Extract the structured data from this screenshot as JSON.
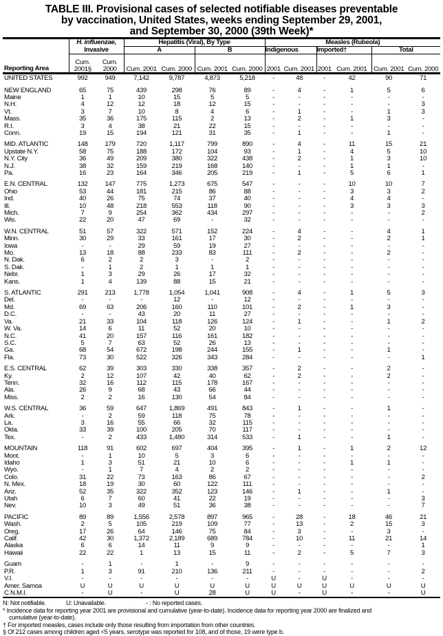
{
  "title": [
    "TABLE III. Provisional cases of selected notifiable diseases preventable",
    "by vaccination, United States, weeks ending September 29, 2001,",
    "and September 30, 2000 (39th Week)*"
  ],
  "header": {
    "reporting_area": "Reporting Area",
    "hib": "H. influenzae,",
    "hib2": "Invasive",
    "hepatitis": "Hepatitis (Viral), By Type",
    "hepA": "A",
    "hepB": "B",
    "measles": "Measles (Rubeola)",
    "indigenous": "Indigenous",
    "imported": "Imported†",
    "total": "Total",
    "cols": [
      "Cum. 2001§",
      "Cum. 2000",
      "Cum. 2001",
      "Cum. 2000",
      "Cum. 2001",
      "Cum. 2000",
      "2001",
      "Cum. 2001",
      "2001",
      "Cum. 2001",
      "Cum. 2001",
      "Cum. 2000"
    ]
  },
  "rows": [
    [
      "UNITED STATES",
      "992",
      "949",
      "7,142",
      "9,787",
      "4,873",
      "5,218",
      "-",
      "48",
      "-",
      "42",
      "90",
      "71"
    ],
    [
      "NEW ENGLAND",
      "65",
      "75",
      "439",
      "298",
      "76",
      "89",
      "-",
      "4",
      "-",
      "1",
      "5",
      "6"
    ],
    [
      "Maine",
      "1",
      "1",
      "10",
      "15",
      "5",
      "5",
      "-",
      "-",
      "-",
      "-",
      "-",
      "-"
    ],
    [
      "N.H.",
      "4",
      "12",
      "12",
      "18",
      "12",
      "15",
      "-",
      "-",
      "-",
      "-",
      "-",
      "3"
    ],
    [
      "Vt.",
      "3",
      "7",
      "10",
      "8",
      "4",
      "6",
      "-",
      "1",
      "-",
      "-",
      "1",
      "3"
    ],
    [
      "Mass.",
      "35",
      "36",
      "175",
      "115",
      "2",
      "13",
      "-",
      "2",
      "-",
      "1",
      "3",
      "-"
    ],
    [
      "R.I.",
      "3",
      "4",
      "38",
      "21",
      "22",
      "15",
      "-",
      "-",
      "-",
      "-",
      "-",
      "-"
    ],
    [
      "Conn.",
      "19",
      "15",
      "194",
      "121",
      "31",
      "35",
      "-",
      "1",
      "-",
      "-",
      "1",
      "-"
    ],
    [
      "MID. ATLANTIC",
      "148",
      "179",
      "720",
      "1,117",
      "799",
      "890",
      "-",
      "4",
      "-",
      "11",
      "15",
      "21"
    ],
    [
      "Upstate N.Y.",
      "58",
      "75",
      "188",
      "172",
      "104",
      "93",
      "-",
      "1",
      "-",
      "4",
      "5",
      "10"
    ],
    [
      "N.Y. City",
      "36",
      "49",
      "209",
      "380",
      "322",
      "438",
      "-",
      "2",
      "-",
      "1",
      "3",
      "10"
    ],
    [
      "N.J.",
      "38",
      "32",
      "159",
      "219",
      "168",
      "140",
      "-",
      "-",
      "-",
      "1",
      "1",
      "-"
    ],
    [
      "Pa.",
      "16",
      "23",
      "164",
      "346",
      "205",
      "219",
      "-",
      "1",
      "-",
      "5",
      "6",
      "1"
    ],
    [
      "E.N. CENTRAL",
      "132",
      "147",
      "775",
      "1,273",
      "675",
      "547",
      "-",
      "-",
      "-",
      "10",
      "10",
      "7"
    ],
    [
      "Ohio",
      "53",
      "44",
      "181",
      "215",
      "86",
      "88",
      "-",
      "-",
      "-",
      "3",
      "3",
      "2"
    ],
    [
      "Ind.",
      "40",
      "26",
      "75",
      "74",
      "37",
      "40",
      "-",
      "-",
      "-",
      "4",
      "4",
      "-"
    ],
    [
      "Ill.",
      "10",
      "48",
      "218",
      "553",
      "118",
      "90",
      "-",
      "-",
      "-",
      "3",
      "3",
      "3"
    ],
    [
      "Mich.",
      "7",
      "9",
      "254",
      "362",
      "434",
      "297",
      "-",
      "-",
      "-",
      "-",
      "-",
      "2"
    ],
    [
      "Wis.",
      "22",
      "20",
      "47",
      "69",
      "-",
      "32",
      "-",
      "-",
      "-",
      "-",
      "-",
      "-"
    ],
    [
      "W.N. CENTRAL",
      "51",
      "57",
      "322",
      "571",
      "152",
      "224",
      "-",
      "4",
      "-",
      "-",
      "4",
      "1"
    ],
    [
      "Minn.",
      "30",
      "29",
      "33",
      "161",
      "17",
      "30",
      "-",
      "2",
      "-",
      "-",
      "2",
      "1"
    ],
    [
      "Iowa",
      "-",
      "-",
      "29",
      "59",
      "19",
      "27",
      "-",
      "-",
      "-",
      "-",
      "-",
      "-"
    ],
    [
      "Mo.",
      "13",
      "18",
      "88",
      "233",
      "83",
      "111",
      "-",
      "2",
      "-",
      "-",
      "2",
      "-"
    ],
    [
      "N. Dak.",
      "6",
      "2",
      "2",
      "3",
      "-",
      "2",
      "-",
      "-",
      "-",
      "-",
      "-",
      "-"
    ],
    [
      "S. Dak.",
      "-",
      "1",
      "2",
      "1",
      "1",
      "1",
      "-",
      "-",
      "-",
      "-",
      "-",
      "-"
    ],
    [
      "Nebr.",
      "1",
      "3",
      "29",
      "26",
      "17",
      "32",
      "-",
      "-",
      "-",
      "-",
      "-",
      "-"
    ],
    [
      "Kans.",
      "1",
      "4",
      "139",
      "88",
      "15",
      "21",
      "-",
      "-",
      "-",
      "-",
      "-",
      "-"
    ],
    [
      "S. ATLANTIC",
      "291",
      "213",
      "1,778",
      "1,054",
      "1,041",
      "908",
      "-",
      "4",
      "-",
      "1",
      "5",
      "3"
    ],
    [
      "Del.",
      "-",
      "-",
      "-",
      "12",
      "-",
      "12",
      "-",
      "-",
      "-",
      "-",
      "-",
      "-"
    ],
    [
      "Md.",
      "69",
      "63",
      "206",
      "160",
      "110",
      "101",
      "-",
      "2",
      "-",
      "1",
      "3",
      "-"
    ],
    [
      "D.C.",
      "-",
      "-",
      "43",
      "20",
      "11",
      "27",
      "-",
      "-",
      "-",
      "-",
      "-",
      "-"
    ],
    [
      "Va.",
      "21",
      "33",
      "104",
      "118",
      "126",
      "124",
      "-",
      "1",
      "-",
      "-",
      "1",
      "2"
    ],
    [
      "W. Va.",
      "14",
      "6",
      "11",
      "52",
      "20",
      "10",
      "-",
      "-",
      "-",
      "-",
      "-",
      "-"
    ],
    [
      "N.C.",
      "41",
      "20",
      "157",
      "116",
      "161",
      "182",
      "-",
      "-",
      "-",
      "-",
      "-",
      "-"
    ],
    [
      "S.C.",
      "5",
      "7",
      "63",
      "52",
      "26",
      "13",
      "-",
      "-",
      "-",
      "-",
      "-",
      "-"
    ],
    [
      "Ga.",
      "68",
      "54",
      "672",
      "198",
      "244",
      "155",
      "-",
      "1",
      "-",
      "-",
      "1",
      "-"
    ],
    [
      "Fla.",
      "73",
      "30",
      "522",
      "326",
      "343",
      "284",
      "-",
      "-",
      "-",
      "-",
      "-",
      "1"
    ],
    [
      "E.S. CENTRAL",
      "62",
      "39",
      "303",
      "330",
      "338",
      "357",
      "-",
      "2",
      "-",
      "-",
      "2",
      "-"
    ],
    [
      "Ky.",
      "2",
      "12",
      "107",
      "42",
      "40",
      "62",
      "-",
      "2",
      "-",
      "-",
      "2",
      "-"
    ],
    [
      "Tenn.",
      "32",
      "16",
      "112",
      "115",
      "178",
      "167",
      "-",
      "-",
      "-",
      "-",
      "-",
      "-"
    ],
    [
      "Ala.",
      "26",
      "9",
      "68",
      "43",
      "66",
      "44",
      "-",
      "-",
      "-",
      "-",
      "-",
      "-"
    ],
    [
      "Miss.",
      "2",
      "2",
      "16",
      "130",
      "54",
      "84",
      "-",
      "-",
      "-",
      "-",
      "-",
      "-"
    ],
    [
      "W.S. CENTRAL",
      "36",
      "59",
      "647",
      "1,869",
      "491",
      "843",
      "-",
      "1",
      "-",
      "-",
      "1",
      "-"
    ],
    [
      "Ark.",
      "-",
      "2",
      "59",
      "118",
      "75",
      "78",
      "-",
      "-",
      "-",
      "-",
      "-",
      "-"
    ],
    [
      "La.",
      "3",
      "16",
      "55",
      "66",
      "32",
      "115",
      "-",
      "-",
      "-",
      "-",
      "-",
      "-"
    ],
    [
      "Okla.",
      "33",
      "39",
      "100",
      "205",
      "70",
      "117",
      "-",
      "-",
      "-",
      "-",
      "-",
      "-"
    ],
    [
      "Tex.",
      "-",
      "2",
      "433",
      "1,480",
      "314",
      "533",
      "-",
      "1",
      "-",
      "-",
      "1",
      "-"
    ],
    [
      "MOUNTAIN",
      "118",
      "91",
      "602",
      "697",
      "404",
      "395",
      "-",
      "1",
      "-",
      "1",
      "2",
      "12"
    ],
    [
      "Mont.",
      "-",
      "1",
      "10",
      "5",
      "3",
      "6",
      "-",
      "-",
      "-",
      "-",
      "-",
      "-"
    ],
    [
      "Idaho",
      "1",
      "3",
      "51",
      "21",
      "10",
      "6",
      "-",
      "-",
      "-",
      "1",
      "1",
      "-"
    ],
    [
      "Wyo.",
      "-",
      "1",
      "7",
      "4",
      "2",
      "2",
      "-",
      "-",
      "-",
      "-",
      "-",
      "-"
    ],
    [
      "Colo.",
      "31",
      "22",
      "73",
      "163",
      "86",
      "67",
      "-",
      "-",
      "-",
      "-",
      "-",
      "2"
    ],
    [
      "N. Mex.",
      "18",
      "19",
      "30",
      "60",
      "122",
      "111",
      "-",
      "-",
      "-",
      "-",
      "-",
      "-"
    ],
    [
      "Ariz.",
      "52",
      "35",
      "322",
      "352",
      "123",
      "146",
      "-",
      "1",
      "-",
      "-",
      "1",
      "-"
    ],
    [
      "Utah",
      "6",
      "7",
      "60",
      "41",
      "22",
      "19",
      "-",
      "-",
      "-",
      "-",
      "-",
      "3"
    ],
    [
      "Nev.",
      "10",
      "3",
      "49",
      "51",
      "36",
      "38",
      "-",
      "-",
      "-",
      "-",
      "-",
      "7"
    ],
    [
      "PACIFIC",
      "89",
      "89",
      "1,556",
      "2,578",
      "897",
      "965",
      "-",
      "28",
      "-",
      "18",
      "46",
      "21"
    ],
    [
      "Wash.",
      "2",
      "5",
      "105",
      "219",
      "109",
      "77",
      "-",
      "13",
      "-",
      "2",
      "15",
      "3"
    ],
    [
      "Oreg.",
      "17",
      "26",
      "64",
      "146",
      "75",
      "84",
      "-",
      "3",
      "-",
      "-",
      "3",
      "-"
    ],
    [
      "Calif.",
      "42",
      "30",
      "1,372",
      "2,189",
      "689",
      "784",
      "-",
      "10",
      "-",
      "11",
      "21",
      "14"
    ],
    [
      "Alaska",
      "6",
      "6",
      "14",
      "11",
      "9",
      "9",
      "-",
      "-",
      "-",
      "-",
      "-",
      "1"
    ],
    [
      "Hawaii",
      "22",
      "22",
      "1",
      "13",
      "15",
      "11",
      "-",
      "2",
      "-",
      "5",
      "7",
      "3"
    ],
    [
      "Guam",
      "-",
      "1",
      "-",
      "1",
      "-",
      "9",
      "-",
      "-",
      "-",
      "-",
      "-",
      "-"
    ],
    [
      "P.R.",
      "1",
      "3",
      "91",
      "210",
      "136",
      "211",
      "-",
      "-",
      "-",
      "-",
      "-",
      "2"
    ],
    [
      "V.I.",
      "-",
      "-",
      "-",
      "-",
      "-",
      "-",
      "U",
      "-",
      "U",
      "-",
      "-",
      "-"
    ],
    [
      "Amer. Samoa",
      "U",
      "U",
      "U",
      "U",
      "U",
      "U",
      "U",
      "U",
      "U",
      "U",
      "U",
      "U"
    ],
    [
      "C.N.M.I.",
      "-",
      "U",
      "-",
      "U",
      "28",
      "U",
      "U",
      "-",
      "U",
      "-",
      "-",
      "U"
    ]
  ],
  "group_starts": [
    "NEW ENGLAND",
    "MID. ATLANTIC",
    "E.N. CENTRAL",
    "W.N. CENTRAL",
    "S. ATLANTIC",
    "E.S. CENTRAL",
    "W.S. CENTRAL",
    "MOUNTAIN",
    "PACIFIC",
    "Guam"
  ],
  "footnotes": {
    "n": "N: Not notifiable.",
    "u": "U: Unavailable.",
    "dash": "- : No reported cases.",
    "star": "* Incidence data for reporting year 2001 are provisional and cumulative (year-to-date). Incidence data for reporting year 2000 are finalized and",
    "star2": "cumulative (year-to-date).",
    "dagger": "† For imported measles, cases include only those resulting from importation from other countries.",
    "section": "§ Of 212 cases among children aged <5 years, serotype was reported for 108, and of those, 19 were type b."
  }
}
